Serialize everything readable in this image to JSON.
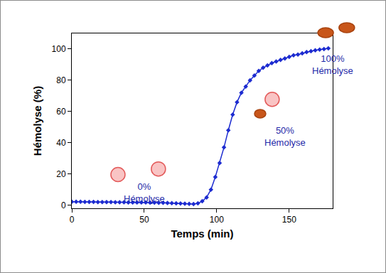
{
  "chart_data": {
    "type": "line",
    "xlabel": "Temps (min)",
    "ylabel": "Hémolyse (%)",
    "x": [
      0,
      3,
      6,
      9,
      12,
      15,
      18,
      21,
      24,
      27,
      30,
      33,
      36,
      39,
      42,
      45,
      48,
      51,
      54,
      57,
      60,
      63,
      66,
      69,
      72,
      75,
      78,
      81,
      84,
      87,
      90,
      93,
      96,
      99,
      102,
      105,
      108,
      111,
      114,
      117,
      120,
      123,
      126,
      129,
      132,
      135,
      138,
      141,
      144,
      147,
      150,
      153,
      156,
      159,
      162,
      165,
      168,
      171,
      174,
      177
    ],
    "values": [
      2.2,
      2.2,
      2.2,
      2.1,
      2.1,
      2.1,
      2.0,
      2.0,
      2.0,
      2.0,
      1.9,
      1.9,
      1.9,
      1.8,
      1.8,
      1.8,
      1.7,
      1.7,
      1.6,
      1.6,
      1.5,
      1.5,
      1.4,
      1.3,
      1.2,
      1.1,
      1.0,
      0.8,
      0.7,
      1.2,
      2.5,
      5,
      10,
      18,
      27,
      37,
      48,
      58,
      66,
      72,
      76,
      80,
      83,
      86,
      88,
      89.5,
      91,
      92,
      93,
      94,
      95,
      96,
      96.5,
      97.3,
      98,
      98.6,
      99.2,
      99.6,
      100,
      100.4
    ],
    "color": "#1c2bd0",
    "marker": "diamond",
    "line_style": "solid",
    "xlim": [
      0,
      180
    ],
    "ylim": [
      -2,
      110
    ],
    "xticks": [
      0,
      50,
      100,
      150
    ],
    "yticks": [
      0,
      20,
      40,
      60,
      80,
      100
    ],
    "grid": false,
    "annotations": [
      {
        "text": [
          "0%",
          "Hémolyse"
        ]
      },
      {
        "text": [
          "50%",
          "Hémolyse"
        ]
      },
      {
        "text": [
          "100%",
          "Hémolyse"
        ]
      }
    ]
  }
}
